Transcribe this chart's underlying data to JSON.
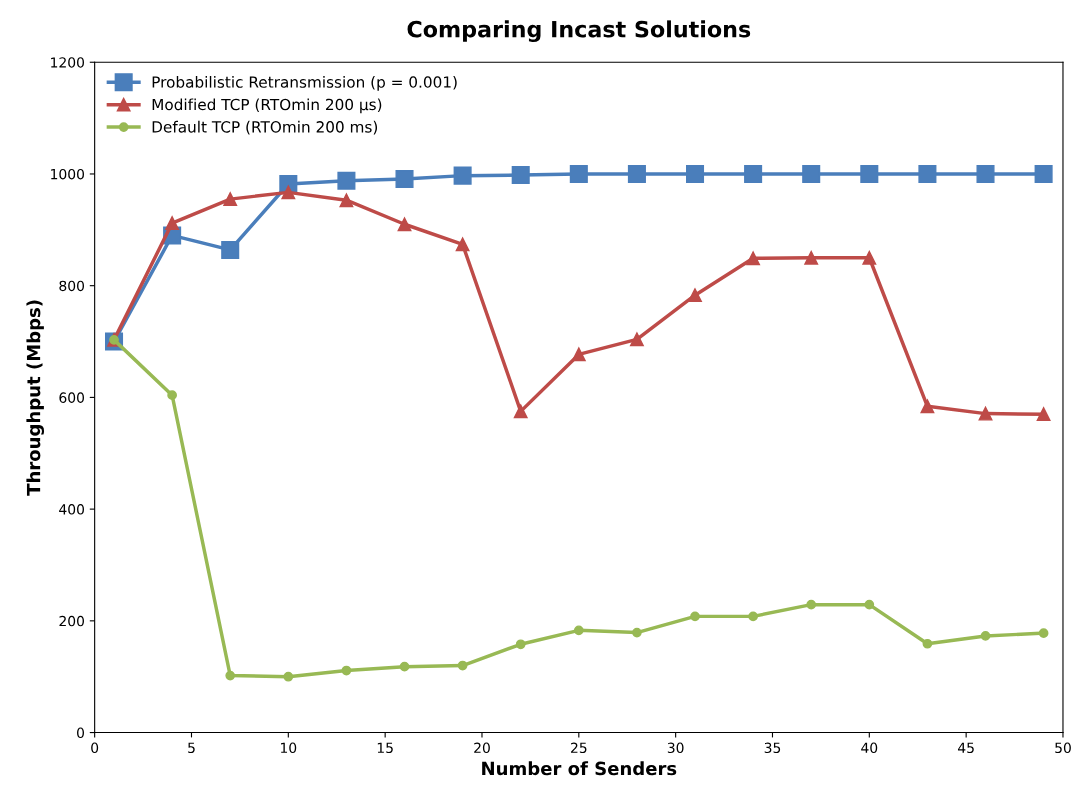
{
  "chart_data": {
    "type": "line",
    "title": "Comparing Incast Solutions",
    "xlabel": "Number of Senders",
    "ylabel": "Throughput (Mbps)",
    "x": [
      1,
      4,
      7,
      10,
      13,
      16,
      19,
      22,
      25,
      28,
      31,
      34,
      37,
      40,
      43,
      46,
      49
    ],
    "series": [
      {
        "name": "Probabilistic Retransmission (p = 0.001)",
        "color": "#4a7ebb",
        "marker": "square",
        "values": [
          700,
          890,
          864,
          982,
          988,
          991,
          997,
          998,
          1000,
          1000,
          1000,
          1000,
          1000,
          1000,
          1000,
          1000,
          1000
        ]
      },
      {
        "name": "Modified TCP (RTOmin 200 µs)",
        "color": "#be4b48",
        "marker": "triangle",
        "values": [
          703,
          912,
          955,
          967,
          953,
          910,
          874,
          575,
          677,
          704,
          783,
          849,
          850,
          850,
          584,
          571,
          570
        ]
      },
      {
        "name": "Default TCP (RTOmin 200 ms)",
        "color": "#98b954",
        "marker": "circle",
        "values": [
          703,
          604,
          102,
          100,
          111,
          118,
          120,
          158,
          183,
          179,
          208,
          208,
          229,
          229,
          159,
          173,
          178
        ]
      }
    ],
    "xlim": [
      0,
      50
    ],
    "xticks": [
      0,
      5,
      10,
      15,
      20,
      25,
      30,
      35,
      40,
      45,
      50
    ],
    "ylim": [
      0,
      1200
    ],
    "yticks": [
      0,
      200,
      400,
      600,
      800,
      1000,
      1200
    ],
    "grid": false,
    "legend": "top left",
    "line_style": "solid"
  }
}
